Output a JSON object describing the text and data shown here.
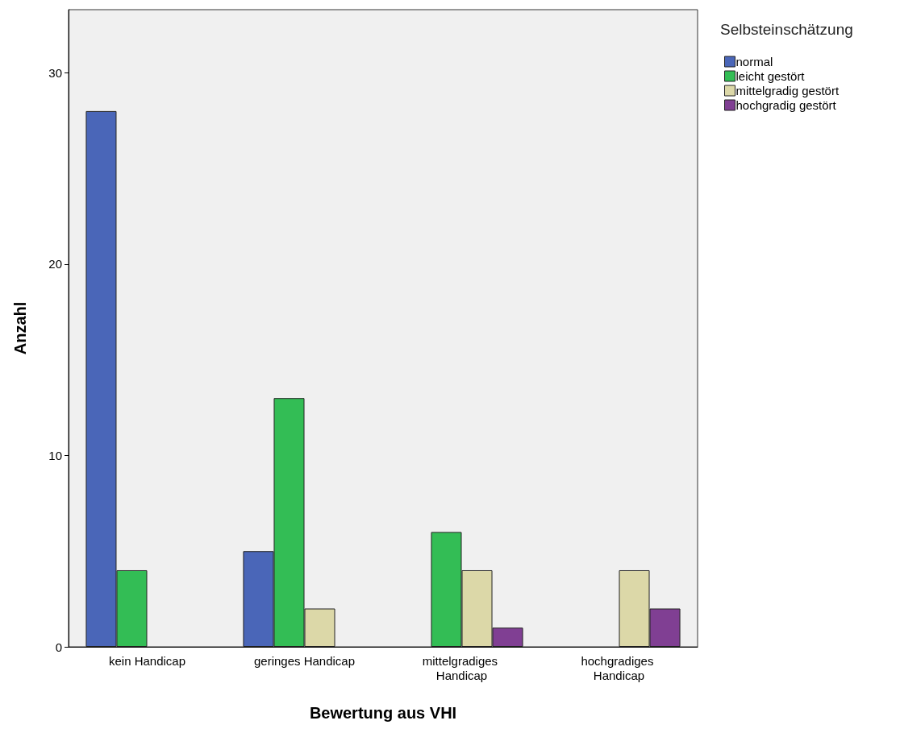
{
  "chart_data": {
    "type": "bar",
    "xlabel": "Bewertung aus VHI",
    "ylabel": "Anzahl",
    "legend_title": "Selbsteinschätzung",
    "categories": [
      "kein Handicap",
      "geringes Handicap",
      "mittelgradiges Handicap",
      "hochgradiges Handicap"
    ],
    "series": [
      {
        "name": "normal",
        "color": "#4a66b8",
        "values": [
          28,
          5,
          null,
          null
        ]
      },
      {
        "name": "leicht gestört",
        "color": "#33bd55",
        "values": [
          4,
          13,
          6,
          null
        ]
      },
      {
        "name": "mittelgradig gestört",
        "color": "#dcd8a8",
        "values": [
          null,
          2,
          4,
          4
        ]
      },
      {
        "name": "hochgradig gestört",
        "color": "#803f93",
        "values": [
          null,
          null,
          1,
          2
        ]
      }
    ],
    "ylim": [
      0,
      33.3
    ],
    "yticks": [
      0,
      10,
      20,
      30
    ],
    "grid": false,
    "legend": "right"
  }
}
